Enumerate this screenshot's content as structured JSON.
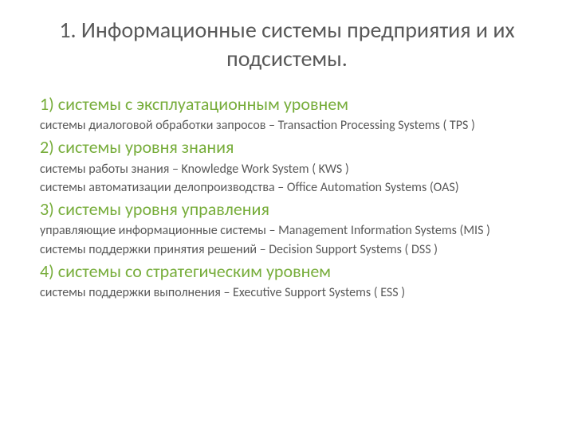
{
  "title": "1. Информационные системы предприятия и их подсистемы.",
  "sections": [
    {
      "header": "1) системы с эксплуатационным уровнем",
      "body": [
        "системы диалоговой обработки запросов – Transaction Processing Systems ( TPS )"
      ]
    },
    {
      "header": "2) системы уровня знания",
      "body": [
        "системы работы знания – Knowledge Work System ( KWS )",
        "системы автоматизации делопроизводства – Office Automation Systems (OAS)"
      ]
    },
    {
      "header": "3) системы уровня управления",
      "body": [
        "управляющие информационные системы – Management Information Systems (MIS )",
        "системы поддержки принятия решений – Decision Support Systems ( DSS )"
      ]
    },
    {
      "header": "4) системы со стратегическим уровнем",
      "body": [
        "системы поддержки выполнения – Executive Support Systems (  ESS )"
      ]
    }
  ],
  "colors": {
    "title": "#595959",
    "header": "#77ad3b",
    "body": "#595959",
    "background": "#ffffff"
  },
  "typography": {
    "title_fontsize": 28,
    "header_fontsize": 22,
    "body_fontsize": 16,
    "font_family": "Calibri, Arial, sans-serif"
  }
}
